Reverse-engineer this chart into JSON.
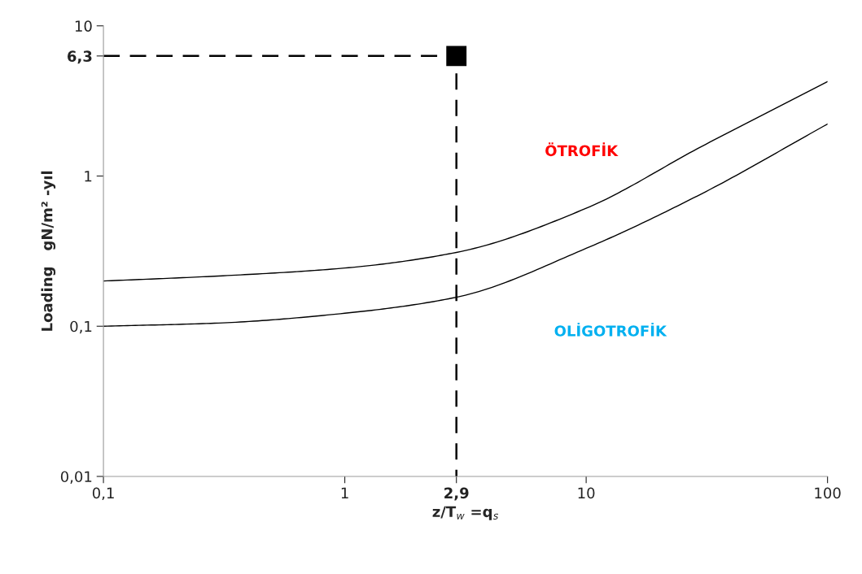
{
  "chart_data": {
    "type": "line",
    "xlabel": "z/T$_{w}$ =q$_{s}$",
    "ylabel": "Loading   gN/m² -yıl",
    "log": "xy",
    "xlim": [
      0.1,
      100
    ],
    "ylim": [
      0.01,
      10
    ],
    "xticks": [
      {
        "value": 0.1,
        "label": "0,1"
      },
      1,
      {
        "value": 2.9,
        "label": "2,9"
      },
      10,
      100
    ],
    "yticks": [
      {
        "value": 0.01,
        "label": "0,01"
      },
      {
        "value": 0.1,
        "label": "0,1"
      },
      1,
      {
        "value": 6.3,
        "label": "6,3"
      },
      10
    ],
    "grid": false,
    "series": [
      {
        "color": "#000000",
        "x": [
          0.1,
          0.3,
          1,
          2.9,
          10,
          30,
          100
        ],
        "values": [
          0.2,
          0.216,
          0.244,
          0.31,
          0.61,
          1.57,
          4.25
        ],
        "marker": "none",
        "line_style": "solid"
      },
      {
        "color": "#000000",
        "x": [
          0.1,
          0.3,
          1,
          2.9,
          10,
          30,
          100
        ],
        "values": [
          0.1,
          0.105,
          0.122,
          0.156,
          0.33,
          0.76,
          2.22
        ],
        "marker": "none",
        "line_style": "solid"
      },
      {
        "color": "#000000",
        "x": [
          0.1,
          2.9,
          2.9
        ],
        "values": [
          6.3,
          6.3,
          0.01
        ],
        "marker": "none",
        "line_style": "dashed"
      },
      {
        "type": "scatter",
        "color": "#000000",
        "x": [
          2.9
        ],
        "values": [
          6.3
        ],
        "marker": "square"
      }
    ],
    "annotations": [
      "ÖTROFİK",
      "OLİGOTROFİK"
    ]
  }
}
